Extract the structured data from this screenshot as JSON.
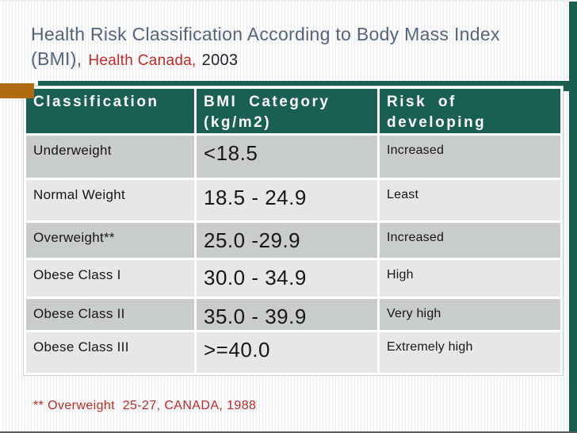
{
  "title": {
    "line1": "Health Risk Classification According to Body Mass Index",
    "line2_prefix": "(BMI),",
    "line2_source": "Health Canada,",
    "line2_year": "2003"
  },
  "table": {
    "header": {
      "classification": "Classification",
      "bmi_line1": "BMI Category",
      "bmi_line2": "(kg/m2)",
      "risk_line1": "Risk of",
      "risk_line2": "developing"
    },
    "rows": [
      {
        "classification": "Underweight",
        "bmi": "<18.5",
        "risk": "Increased"
      },
      {
        "classification": "Normal Weight",
        "bmi": "18.5 - 24.9",
        "risk": "Least"
      },
      {
        "classification": "Overweight**",
        "bmi": "25.0 -29.9",
        "risk": "Increased"
      },
      {
        "classification": "Obese Class I",
        "bmi": "30.0 - 34.9",
        "risk": "High"
      },
      {
        "classification": "Obese Class II",
        "bmi": "35.0 - 39.9",
        "risk": "Very high"
      },
      {
        "classification": "Obese Class III",
        "bmi": ">=40.0",
        "risk": "Extremely high"
      }
    ]
  },
  "footnote": "** Overweight  25-27, CANADA, 1988",
  "colors": {
    "accent_teal": "#1A5E52",
    "accent_orange": "#B26A10",
    "title_slate": "#54657B",
    "highlight_red": "#C02A25",
    "row_dark_gray": "#C9CDC9",
    "row_light_gray": "#E5E8E4"
  }
}
